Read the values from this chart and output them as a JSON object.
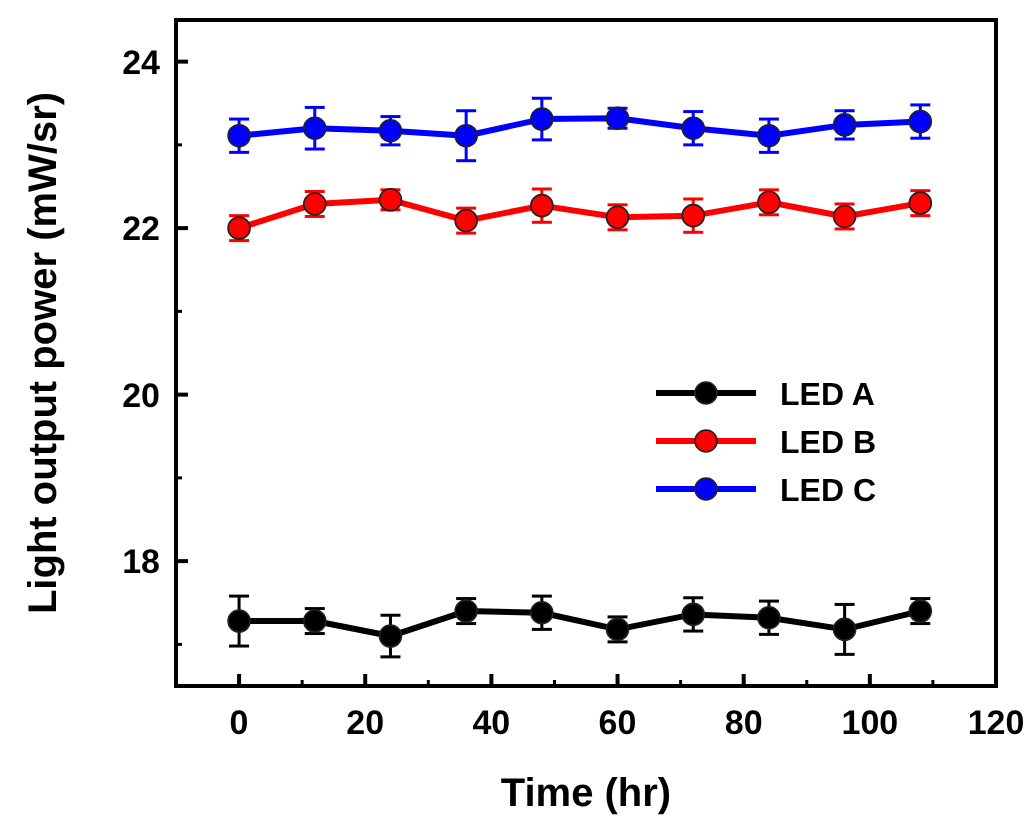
{
  "chart_data": {
    "type": "line",
    "xlabel": "Time (hr)",
    "ylabel": "Light output power (mW/sr)",
    "x": [
      0,
      12,
      24,
      36,
      48,
      60,
      72,
      84,
      96,
      108
    ],
    "xlim": [
      -10,
      120
    ],
    "xticks": [
      0,
      20,
      40,
      60,
      80,
      100,
      120
    ],
    "ylim": [
      16.5,
      24.5
    ],
    "yticks": [
      18,
      20,
      22,
      24
    ],
    "marker": "circle",
    "line_style": "solid",
    "legend": "right",
    "grid": false,
    "series": [
      {
        "name": "LED A",
        "color": "#000000",
        "values": [
          17.28,
          17.28,
          17.1,
          17.4,
          17.38,
          17.18,
          17.36,
          17.32,
          17.18,
          17.4
        ],
        "errors": [
          0.3,
          0.15,
          0.25,
          0.15,
          0.2,
          0.15,
          0.2,
          0.2,
          0.3,
          0.15
        ]
      },
      {
        "name": "LED B",
        "color": "#ff0000",
        "values": [
          22.0,
          22.29,
          22.34,
          22.09,
          22.27,
          22.13,
          22.15,
          22.31,
          22.14,
          22.3
        ],
        "errors": [
          0.15,
          0.15,
          0.12,
          0.15,
          0.2,
          0.15,
          0.2,
          0.15,
          0.15,
          0.15
        ]
      },
      {
        "name": "LED C",
        "color": "#0000ff",
        "values": [
          23.11,
          23.2,
          23.17,
          23.11,
          23.31,
          23.32,
          23.2,
          23.11,
          23.24,
          23.28
        ],
        "errors": [
          0.2,
          0.25,
          0.17,
          0.3,
          0.25,
          0.12,
          0.2,
          0.2,
          0.17,
          0.2
        ]
      }
    ]
  }
}
